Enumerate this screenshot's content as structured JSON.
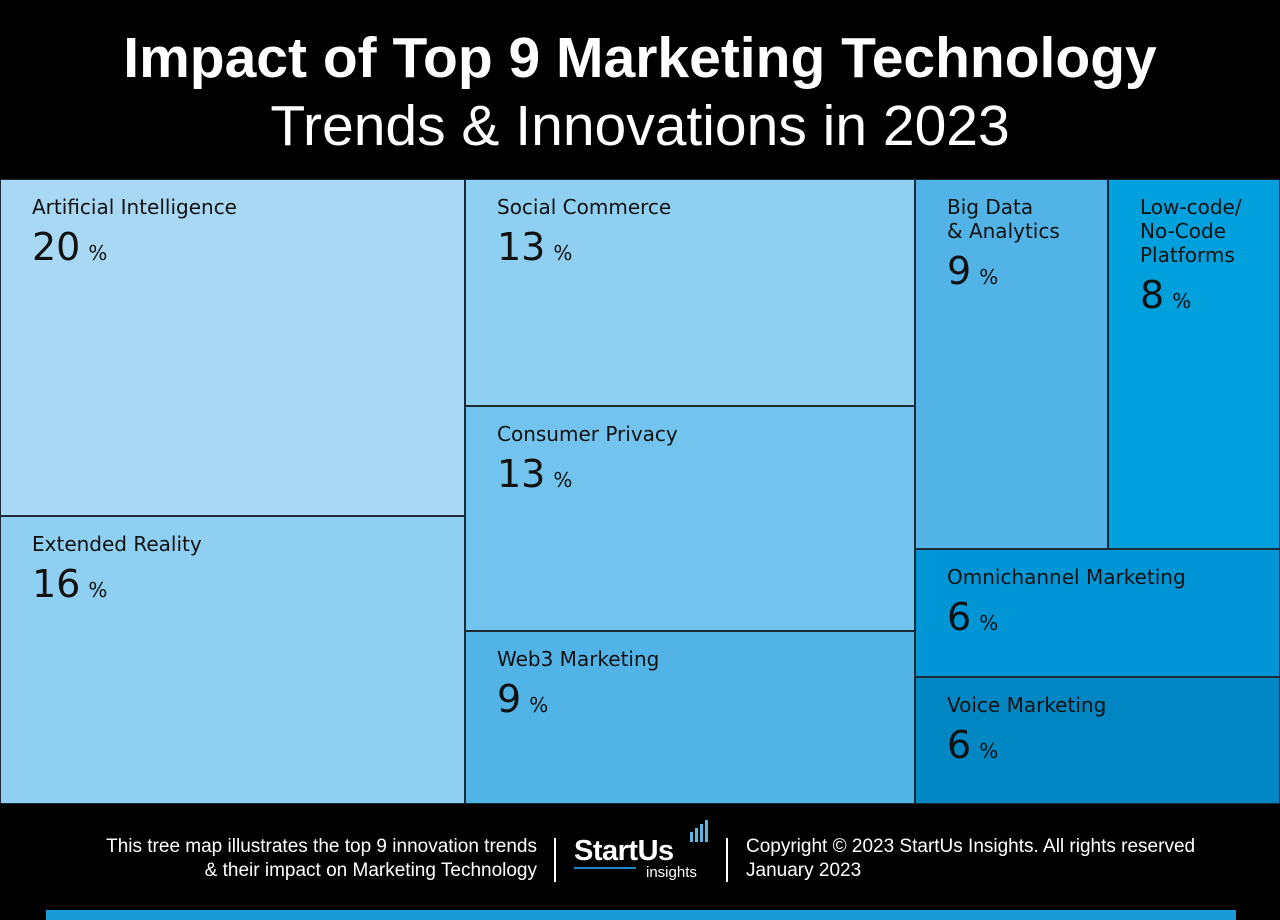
{
  "header": {
    "title_line1": "Impact of Top 9 Marketing Technology",
    "title_line2": "Trends & Innovations in 2023"
  },
  "chart_data": {
    "type": "treemap",
    "title": "Impact of Top 9 Marketing Technology Trends & Innovations in 2023",
    "unit": "%",
    "items": [
      {
        "label": "Artificial Intelligence",
        "value": 20,
        "color": "#a9d8f5"
      },
      {
        "label": "Extended Reality",
        "value": 16,
        "color": "#8ecff2"
      },
      {
        "label": "Social Commerce",
        "value": 13,
        "color": "#8ecff2"
      },
      {
        "label": "Consumer Privacy",
        "value": 13,
        "color": "#72c4ee"
      },
      {
        "label": "Web3 Marketing",
        "value": 9,
        "color": "#52b3e6"
      },
      {
        "label": "Big Data\n& Analytics",
        "value": 9,
        "color": "#52b3e6"
      },
      {
        "label": "Low-code/\nNo-Code\nPlatforms",
        "value": 8,
        "color": "#00a0dd"
      },
      {
        "label": "Omnichannel Marketing",
        "value": 6,
        "color": "#0096d6"
      },
      {
        "label": "Voice Marketing",
        "value": 6,
        "color": "#0087c3"
      }
    ]
  },
  "footer": {
    "description_line1": "This tree map illustrates the top 9 innovation trends",
    "description_line2": "& their impact on Marketing Technology",
    "logo_word": "StartUs",
    "logo_sub": "insights",
    "copyright_line1": "Copyright © 2023 StartUs Insights. All rights reserved",
    "copyright_line2": "January 2023"
  },
  "colors": {
    "background": "#000000",
    "accent": "#1a9ad6"
  }
}
